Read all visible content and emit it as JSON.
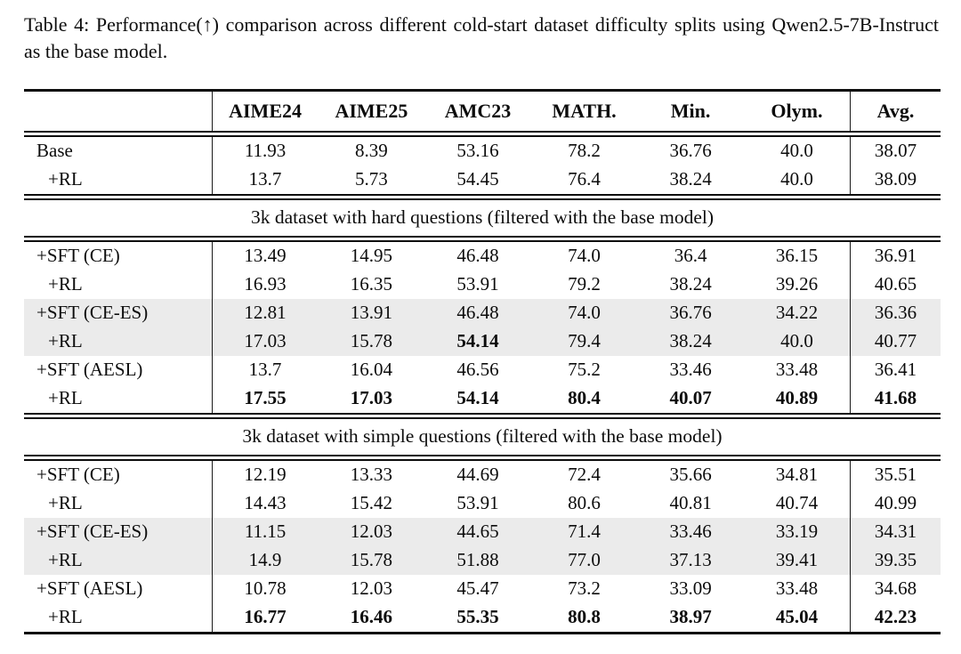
{
  "caption": "Table 4: Performance(↑) comparison across different cold-start dataset difficulty splits using Qwen2.5-7B-Instruct as the base model.",
  "colors": {
    "row_shade": "#ebebeb",
    "rule": "#0c0c0c",
    "text": "#0c0c0c"
  },
  "table": {
    "columns": [
      "",
      "AIME24",
      "AIME25",
      "AMC23",
      "MATH.",
      "Min.",
      "Olym.",
      "Avg."
    ],
    "sections": [
      {
        "header": null,
        "rows": [
          {
            "label": "Base",
            "indent": false,
            "shaded": false,
            "bold_label": false,
            "values": [
              "11.93",
              "8.39",
              "53.16",
              "78.2",
              "36.76",
              "40.0",
              "38.07"
            ],
            "bold": [
              false,
              false,
              false,
              false,
              false,
              false,
              false
            ]
          },
          {
            "label": "+RL",
            "indent": true,
            "shaded": false,
            "bold_label": false,
            "values": [
              "13.7",
              "5.73",
              "54.45",
              "76.4",
              "38.24",
              "40.0",
              "38.09"
            ],
            "bold": [
              false,
              false,
              false,
              false,
              false,
              false,
              false
            ]
          }
        ]
      },
      {
        "header": "3k dataset with hard questions (filtered with the base model)",
        "rows": [
          {
            "label": "+SFT (CE)",
            "indent": false,
            "shaded": false,
            "bold_label": false,
            "values": [
              "13.49",
              "14.95",
              "46.48",
              "74.0",
              "36.4",
              "36.15",
              "36.91"
            ],
            "bold": [
              false,
              false,
              false,
              false,
              false,
              false,
              false
            ]
          },
          {
            "label": "+RL",
            "indent": true,
            "shaded": false,
            "bold_label": false,
            "values": [
              "16.93",
              "16.35",
              "53.91",
              "79.2",
              "38.24",
              "39.26",
              "40.65"
            ],
            "bold": [
              false,
              false,
              false,
              false,
              false,
              false,
              false
            ]
          },
          {
            "label": "+SFT (CE-ES)",
            "indent": false,
            "shaded": true,
            "bold_label": false,
            "values": [
              "12.81",
              "13.91",
              "46.48",
              "74.0",
              "36.76",
              "34.22",
              "36.36"
            ],
            "bold": [
              false,
              false,
              false,
              false,
              false,
              false,
              false
            ]
          },
          {
            "label": "+RL",
            "indent": true,
            "shaded": true,
            "bold_label": false,
            "values": [
              "17.03",
              "15.78",
              "54.14",
              "79.4",
              "38.24",
              "40.0",
              "40.77"
            ],
            "bold": [
              false,
              false,
              true,
              false,
              false,
              false,
              false
            ]
          },
          {
            "label": "+SFT (AESL)",
            "indent": false,
            "shaded": false,
            "bold_label": false,
            "values": [
              "13.7",
              "16.04",
              "46.56",
              "75.2",
              "33.46",
              "33.48",
              "36.41"
            ],
            "bold": [
              false,
              false,
              false,
              false,
              false,
              false,
              false
            ]
          },
          {
            "label": "+RL",
            "indent": true,
            "shaded": false,
            "bold_label": false,
            "values": [
              "17.55",
              "17.03",
              "54.14",
              "80.4",
              "40.07",
              "40.89",
              "41.68"
            ],
            "bold": [
              true,
              true,
              true,
              true,
              true,
              true,
              true
            ]
          }
        ]
      },
      {
        "header": "3k dataset with simple questions (filtered with the base model)",
        "rows": [
          {
            "label": "+SFT (CE)",
            "indent": false,
            "shaded": false,
            "bold_label": false,
            "values": [
              "12.19",
              "13.33",
              "44.69",
              "72.4",
              "35.66",
              "34.81",
              "35.51"
            ],
            "bold": [
              false,
              false,
              false,
              false,
              false,
              false,
              false
            ]
          },
          {
            "label": "+RL",
            "indent": true,
            "shaded": false,
            "bold_label": false,
            "values": [
              "14.43",
              "15.42",
              "53.91",
              "80.6",
              "40.81",
              "40.74",
              "40.99"
            ],
            "bold": [
              false,
              false,
              false,
              false,
              false,
              false,
              false
            ]
          },
          {
            "label": "+SFT (CE-ES)",
            "indent": false,
            "shaded": true,
            "bold_label": false,
            "values": [
              "11.15",
              "12.03",
              "44.65",
              "71.4",
              "33.46",
              "33.19",
              "34.31"
            ],
            "bold": [
              false,
              false,
              false,
              false,
              false,
              false,
              false
            ]
          },
          {
            "label": "+RL",
            "indent": true,
            "shaded": true,
            "bold_label": false,
            "values": [
              "14.9",
              "15.78",
              "51.88",
              "77.0",
              "37.13",
              "39.41",
              "39.35"
            ],
            "bold": [
              false,
              false,
              false,
              false,
              false,
              false,
              false
            ]
          },
          {
            "label": "+SFT (AESL)",
            "indent": false,
            "shaded": false,
            "bold_label": false,
            "values": [
              "10.78",
              "12.03",
              "45.47",
              "73.2",
              "33.09",
              "33.48",
              "34.68"
            ],
            "bold": [
              false,
              false,
              false,
              false,
              false,
              false,
              false
            ]
          },
          {
            "label": "+RL",
            "indent": true,
            "shaded": false,
            "bold_label": false,
            "values": [
              "16.77",
              "16.46",
              "55.35",
              "80.8",
              "38.97",
              "45.04",
              "42.23"
            ],
            "bold": [
              true,
              true,
              true,
              true,
              true,
              true,
              true
            ]
          }
        ]
      }
    ]
  }
}
